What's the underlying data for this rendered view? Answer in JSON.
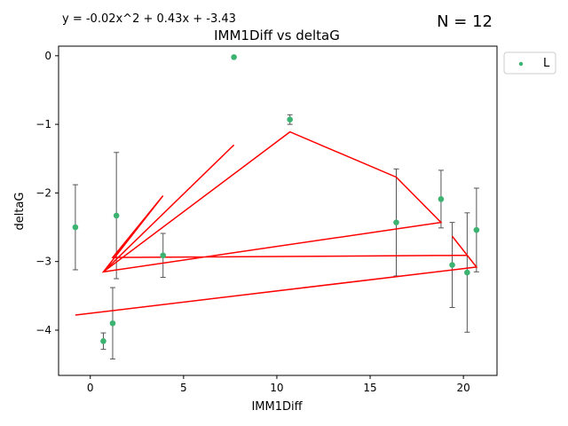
{
  "chart_data": {
    "type": "scatter",
    "title": "IMM1Diff vs deltaG",
    "xlabel": "IMM1Diff",
    "ylabel": "deltaG",
    "equation": "y = -0.02x^2 + 0.43x + -3.43",
    "n_label": "N = 12",
    "xlim": [
      -1.7,
      21.8
    ],
    "ylim": [
      -4.66,
      0.14
    ],
    "x_ticks": [
      0,
      5,
      10,
      15,
      20
    ],
    "y_ticks": [
      0,
      -1,
      -2,
      -3,
      -4
    ],
    "x_tick_labels": [
      "0",
      "5",
      "10",
      "15",
      "20"
    ],
    "y_tick_labels": [
      "0",
      "−1",
      "−2",
      "−3",
      "−4"
    ],
    "grid": false,
    "legend": {
      "position": "outside-top-right",
      "entries": [
        "L"
      ]
    },
    "series": [
      {
        "name": "L",
        "color": "#3cb371",
        "points": [
          {
            "x": -0.8,
            "y": -2.5,
            "err": 0.62
          },
          {
            "x": 0.7,
            "y": -4.16,
            "err": 0.12
          },
          {
            "x": 1.2,
            "y": -3.9,
            "err": 0.52
          },
          {
            "x": 1.4,
            "y": -2.33,
            "err": 0.92
          },
          {
            "x": 3.9,
            "y": -2.91,
            "err": 0.32
          },
          {
            "x": 7.7,
            "y": -0.02,
            "err": 0
          },
          {
            "x": 10.7,
            "y": -0.93,
            "err": 0.07
          },
          {
            "x": 16.4,
            "y": -2.43,
            "err": 0.78
          },
          {
            "x": 18.8,
            "y": -2.09,
            "err": 0.42
          },
          {
            "x": 19.4,
            "y": -3.05,
            "err": 0.62
          },
          {
            "x": 20.2,
            "y": -3.16,
            "err": 0.87
          },
          {
            "x": 20.7,
            "y": -2.54,
            "err": 0.61
          }
        ]
      }
    ],
    "fit_line": {
      "color": "#ff0000",
      "points": [
        {
          "x": 7.7,
          "y": -1.3
        },
        {
          "x": 0.7,
          "y": -3.15
        },
        {
          "x": 10.7,
          "y": -1.11
        },
        {
          "x": 16.4,
          "y": -1.77
        },
        {
          "x": 18.8,
          "y": -2.43
        },
        {
          "x": 0.7,
          "y": -3.15
        },
        {
          "x": 3.9,
          "y": -2.04
        },
        {
          "x": 1.2,
          "y": -2.94
        },
        {
          "x": 20.2,
          "y": -2.91
        },
        {
          "x": 20.7,
          "y": -3.08
        },
        {
          "x": -0.8,
          "y": -3.78
        },
        {
          "x": 20.7,
          "y": -3.08
        },
        {
          "x": 19.4,
          "y": -2.63
        }
      ]
    }
  }
}
